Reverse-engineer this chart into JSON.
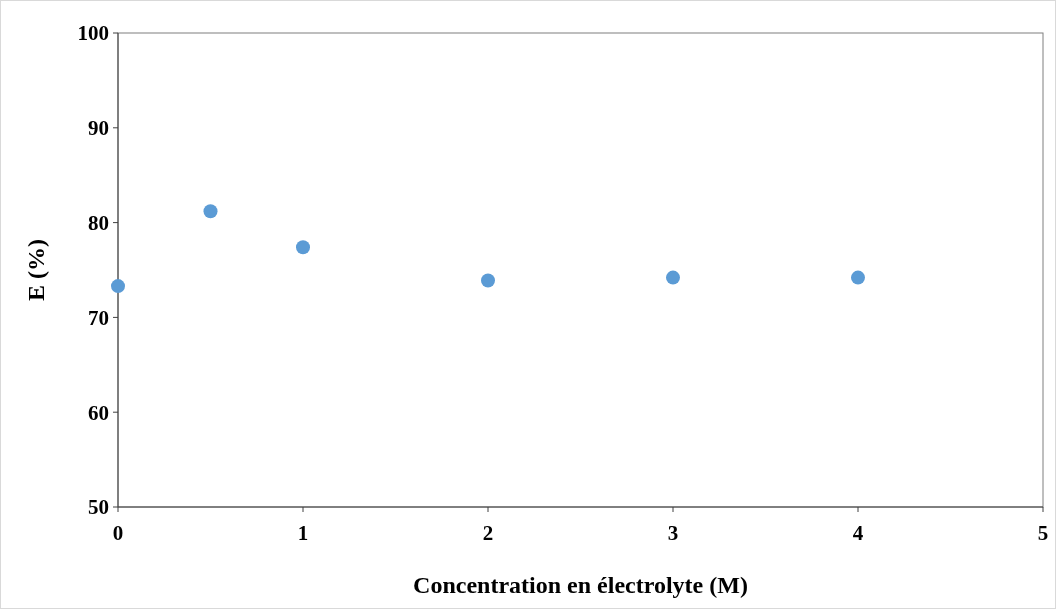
{
  "chart_data": {
    "type": "scatter",
    "xlabel": "Concentration en électrolyte (M)",
    "ylabel": "E (%)",
    "x": [
      0,
      0.5,
      1,
      2,
      3,
      4
    ],
    "values": [
      73.3,
      81.2,
      77.4,
      73.9,
      74.2,
      74.2
    ],
    "color": "#5b9bd5",
    "marker": "circle",
    "xlim": [
      0,
      5
    ],
    "xticks": [
      0,
      1,
      2,
      3,
      4,
      5
    ],
    "ylim": [
      50,
      100
    ],
    "yticks": [
      50,
      60,
      70,
      80,
      90,
      100
    ],
    "grid": false
  }
}
